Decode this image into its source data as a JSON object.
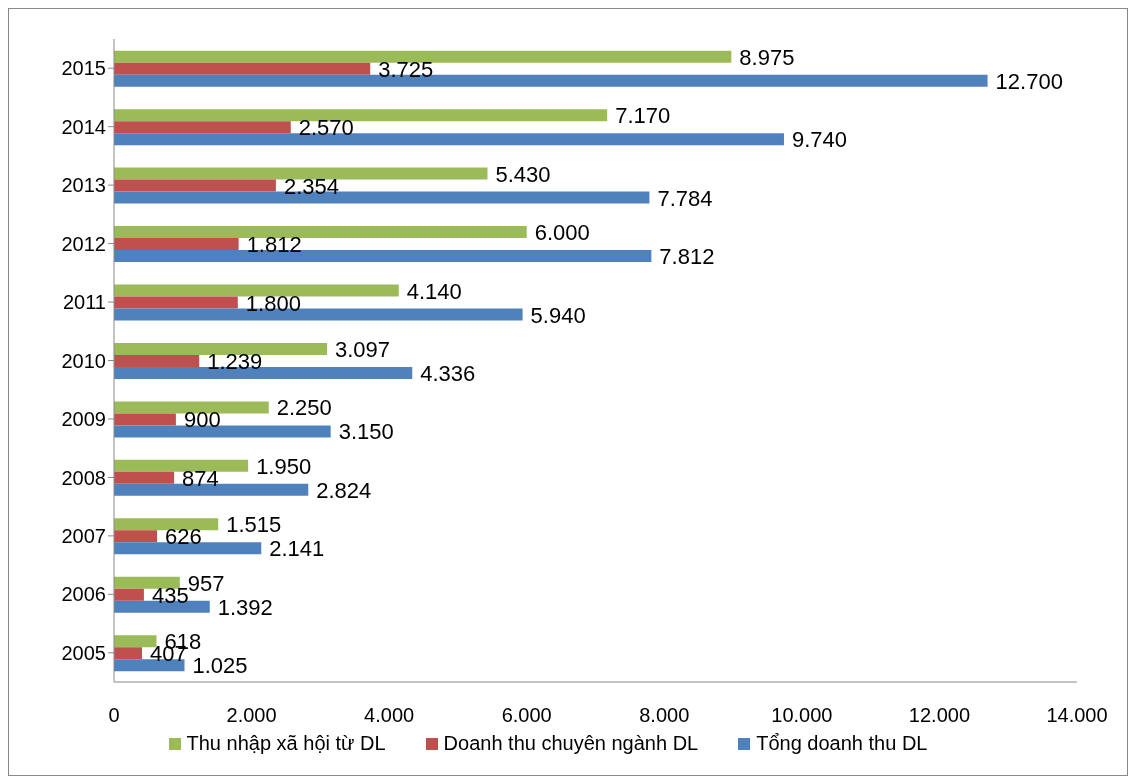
{
  "chart_data": {
    "type": "bar",
    "orientation": "horizontal",
    "categories": [
      "2015",
      "2014",
      "2013",
      "2012",
      "2011",
      "2010",
      "2009",
      "2008",
      "2007",
      "2006",
      "2005"
    ],
    "series": [
      {
        "name": "Thu nhập xã hội từ DL",
        "color": "#9bbb59",
        "values": [
          8975,
          7170,
          5430,
          6000,
          4140,
          3097,
          2250,
          1950,
          1515,
          957,
          618
        ],
        "value_labels": [
          "8.975",
          "7.170",
          "5.430",
          "6.000",
          "4.140",
          "3.097",
          "2.250",
          "1.950",
          "1.515",
          "957",
          "618"
        ]
      },
      {
        "name": "Doanh thu chuyên ngành DL",
        "color": "#c0504d",
        "values": [
          3725,
          2570,
          2354,
          1812,
          1800,
          1239,
          900,
          874,
          626,
          435,
          407
        ],
        "value_labels": [
          "3.725",
          "2.570",
          "2.354",
          "1.812",
          "1.800",
          "1.239",
          "900",
          "874",
          "626",
          "435",
          "407"
        ]
      },
      {
        "name": "Tổng doanh thu DL",
        "color": "#4f81bd",
        "values": [
          12700,
          9740,
          7784,
          7812,
          5940,
          4336,
          3150,
          2824,
          2141,
          1392,
          1025
        ],
        "value_labels": [
          "12.700",
          "9.740",
          "7.784",
          "7.812",
          "5.940",
          "4.336",
          "3.150",
          "2.824",
          "2.141",
          "1.392",
          "1.025"
        ]
      }
    ],
    "xlim": [
      0,
      14000
    ],
    "xticks": [
      {
        "value": 0,
        "label": "0"
      },
      {
        "value": 2000,
        "label": "2.000"
      },
      {
        "value": 4000,
        "label": "4.000"
      },
      {
        "value": 6000,
        "label": "6.000"
      },
      {
        "value": 8000,
        "label": "8.000"
      },
      {
        "value": 10000,
        "label": "10.000"
      },
      {
        "value": 12000,
        "label": "12.000"
      },
      {
        "value": 14000,
        "label": "14.000"
      }
    ],
    "grid": false,
    "legend": "bottom"
  }
}
